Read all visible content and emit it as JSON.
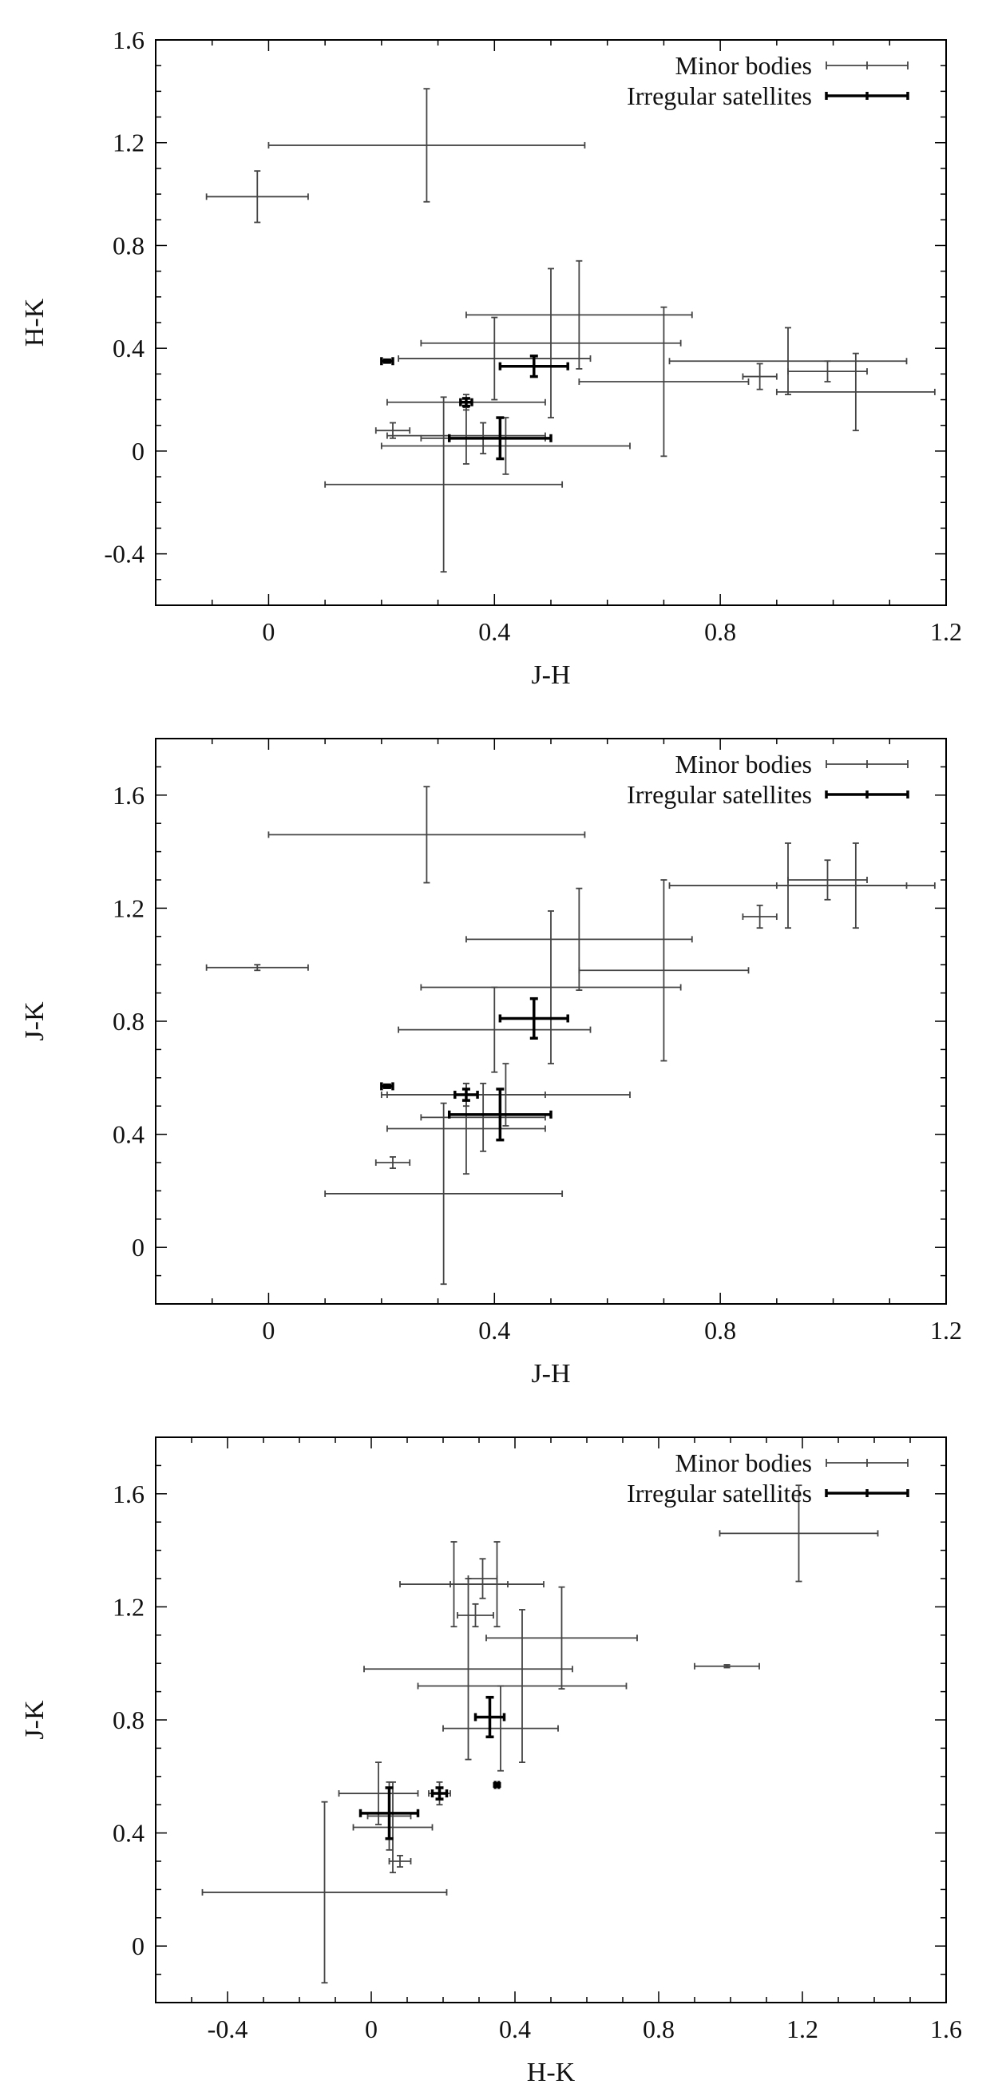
{
  "chart_data": [
    {
      "type": "scatter",
      "title": "",
      "xlabel": "J-H",
      "ylabel": "H-K",
      "xlim": [
        -0.2,
        1.2
      ],
      "ylim": [
        -0.6,
        1.6
      ],
      "xticks": [
        "0",
        "0.4",
        "0.8",
        "1.2"
      ],
      "yticks": [
        "-0.4",
        "0",
        "0.4",
        "0.8",
        "1.2",
        "1.6"
      ],
      "xtick_values": [
        0,
        0.4,
        0.8,
        1.2
      ],
      "ytick_values": [
        -0.4,
        0,
        0.4,
        0.8,
        1.2,
        1.6
      ],
      "grid": false,
      "legend_position": "top-right",
      "series": [
        {
          "name": "Minor bodies",
          "color": "#444444",
          "points": [
            {
              "x": -0.02,
              "y": 0.99,
              "xerr": 0.09,
              "yerr": 0.1
            },
            {
              "x": 0.28,
              "y": 1.19,
              "xerr": 0.28,
              "yerr": 0.22
            },
            {
              "x": 0.55,
              "y": 0.53,
              "xerr": 0.2,
              "yerr": 0.21
            },
            {
              "x": 0.5,
              "y": 0.42,
              "xerr": 0.23,
              "yerr": 0.29
            },
            {
              "x": 0.4,
              "y": 0.36,
              "xerr": 0.17,
              "yerr": 0.16
            },
            {
              "x": 0.7,
              "y": 0.27,
              "xerr": 0.15,
              "yerr": 0.29
            },
            {
              "x": 0.92,
              "y": 0.35,
              "xerr": 0.21,
              "yerr": 0.13
            },
            {
              "x": 0.87,
              "y": 0.29,
              "xerr": 0.03,
              "yerr": 0.05
            },
            {
              "x": 0.99,
              "y": 0.31,
              "xerr": 0.07,
              "yerr": 0.04
            },
            {
              "x": 1.04,
              "y": 0.23,
              "xerr": 0.14,
              "yerr": 0.15
            },
            {
              "x": 0.35,
              "y": 0.19,
              "xerr": 0.14,
              "yerr": 0.03
            },
            {
              "x": 0.22,
              "y": 0.08,
              "xerr": 0.03,
              "yerr": 0.03
            },
            {
              "x": 0.35,
              "y": 0.06,
              "xerr": 0.14,
              "yerr": 0.11
            },
            {
              "x": 0.38,
              "y": 0.05,
              "xerr": 0.11,
              "yerr": 0.06
            },
            {
              "x": 0.42,
              "y": 0.02,
              "xerr": 0.22,
              "yerr": 0.11
            },
            {
              "x": 0.31,
              "y": -0.13,
              "xerr": 0.21,
              "yerr": 0.34
            }
          ]
        },
        {
          "name": "Irregular satellites",
          "color": "#000000",
          "points": [
            {
              "x": 0.21,
              "y": 0.35,
              "xerr": 0.01,
              "yerr": 0.005
            },
            {
              "x": 0.47,
              "y": 0.33,
              "xerr": 0.06,
              "yerr": 0.04
            },
            {
              "x": 0.35,
              "y": 0.19,
              "xerr": 0.01,
              "yerr": 0.015
            },
            {
              "x": 0.41,
              "y": 0.05,
              "xerr": 0.09,
              "yerr": 0.08
            }
          ]
        }
      ]
    },
    {
      "type": "scatter",
      "title": "",
      "xlabel": "J-H",
      "ylabel": "J-K",
      "xlim": [
        -0.2,
        1.2
      ],
      "ylim": [
        -0.2,
        1.8
      ],
      "xticks": [
        "0",
        "0.4",
        "0.8",
        "1.2"
      ],
      "yticks": [
        "0",
        "0.4",
        "0.8",
        "1.2",
        "1.6"
      ],
      "xtick_values": [
        0,
        0.4,
        0.8,
        1.2
      ],
      "ytick_values": [
        0,
        0.4,
        0.8,
        1.2,
        1.6
      ],
      "grid": false,
      "legend_position": "top-right",
      "series": [
        {
          "name": "Minor bodies",
          "color": "#444444",
          "points": [
            {
              "x": -0.02,
              "y": 0.99,
              "xerr": 0.09,
              "yerr": 0.01
            },
            {
              "x": 0.28,
              "y": 1.46,
              "xerr": 0.28,
              "yerr": 0.17
            },
            {
              "x": 0.55,
              "y": 1.09,
              "xerr": 0.2,
              "yerr": 0.18
            },
            {
              "x": 0.5,
              "y": 0.92,
              "xerr": 0.23,
              "yerr": 0.27
            },
            {
              "x": 0.4,
              "y": 0.77,
              "xerr": 0.17,
              "yerr": 0.15
            },
            {
              "x": 0.7,
              "y": 0.98,
              "xerr": 0.15,
              "yerr": 0.32
            },
            {
              "x": 0.92,
              "y": 1.28,
              "xerr": 0.21,
              "yerr": 0.15
            },
            {
              "x": 0.87,
              "y": 1.17,
              "xerr": 0.03,
              "yerr": 0.04
            },
            {
              "x": 0.99,
              "y": 1.3,
              "xerr": 0.07,
              "yerr": 0.07
            },
            {
              "x": 1.04,
              "y": 1.28,
              "xerr": 0.14,
              "yerr": 0.15
            },
            {
              "x": 0.35,
              "y": 0.54,
              "xerr": 0.14,
              "yerr": 0.04
            },
            {
              "x": 0.22,
              "y": 0.3,
              "xerr": 0.03,
              "yerr": 0.02
            },
            {
              "x": 0.35,
              "y": 0.42,
              "xerr": 0.14,
              "yerr": 0.16
            },
            {
              "x": 0.38,
              "y": 0.46,
              "xerr": 0.11,
              "yerr": 0.12
            },
            {
              "x": 0.42,
              "y": 0.54,
              "xerr": 0.22,
              "yerr": 0.11
            },
            {
              "x": 0.31,
              "y": 0.19,
              "xerr": 0.21,
              "yerr": 0.32
            }
          ]
        },
        {
          "name": "Irregular satellites",
          "color": "#000000",
          "points": [
            {
              "x": 0.21,
              "y": 0.57,
              "xerr": 0.01,
              "yerr": 0.005
            },
            {
              "x": 0.47,
              "y": 0.81,
              "xerr": 0.06,
              "yerr": 0.07
            },
            {
              "x": 0.35,
              "y": 0.54,
              "xerr": 0.02,
              "yerr": 0.02
            },
            {
              "x": 0.41,
              "y": 0.47,
              "xerr": 0.09,
              "yerr": 0.09
            }
          ]
        }
      ]
    },
    {
      "type": "scatter",
      "title": "",
      "xlabel": "H-K",
      "ylabel": "J-K",
      "xlim": [
        -0.6,
        1.6
      ],
      "ylim": [
        -0.2,
        1.8
      ],
      "xticks": [
        "-0.4",
        "0",
        "0.4",
        "0.8",
        "1.2",
        "1.6"
      ],
      "yticks": [
        "0",
        "0.4",
        "0.8",
        "1.2",
        "1.6"
      ],
      "xtick_values": [
        -0.4,
        0,
        0.4,
        0.8,
        1.2,
        1.6
      ],
      "ytick_values": [
        0,
        0.4,
        0.8,
        1.2,
        1.6
      ],
      "grid": false,
      "legend_position": "top-right",
      "series": [
        {
          "name": "Minor bodies",
          "color": "#444444",
          "points": [
            {
              "x": 0.99,
              "y": 0.99,
              "xerr": 0.09,
              "yerr": 0.005
            },
            {
              "x": 1.19,
              "y": 1.46,
              "xerr": 0.22,
              "yerr": 0.17
            },
            {
              "x": 0.53,
              "y": 1.09,
              "xerr": 0.21,
              "yerr": 0.18
            },
            {
              "x": 0.42,
              "y": 0.92,
              "xerr": 0.29,
              "yerr": 0.27
            },
            {
              "x": 0.36,
              "y": 0.77,
              "xerr": 0.16,
              "yerr": 0.15
            },
            {
              "x": 0.27,
              "y": 0.98,
              "xerr": 0.29,
              "yerr": 0.32
            },
            {
              "x": 0.35,
              "y": 1.28,
              "xerr": 0.13,
              "yerr": 0.15
            },
            {
              "x": 0.29,
              "y": 1.17,
              "xerr": 0.05,
              "yerr": 0.04
            },
            {
              "x": 0.31,
              "y": 1.3,
              "xerr": 0.04,
              "yerr": 0.07
            },
            {
              "x": 0.23,
              "y": 1.28,
              "xerr": 0.15,
              "yerr": 0.15
            },
            {
              "x": 0.19,
              "y": 0.54,
              "xerr": 0.03,
              "yerr": 0.04
            },
            {
              "x": 0.08,
              "y": 0.3,
              "xerr": 0.03,
              "yerr": 0.02
            },
            {
              "x": 0.06,
              "y": 0.42,
              "xerr": 0.11,
              "yerr": 0.16
            },
            {
              "x": 0.05,
              "y": 0.46,
              "xerr": 0.06,
              "yerr": 0.12
            },
            {
              "x": 0.02,
              "y": 0.54,
              "xerr": 0.11,
              "yerr": 0.11
            },
            {
              "x": -0.13,
              "y": 0.19,
              "xerr": 0.34,
              "yerr": 0.32
            }
          ]
        },
        {
          "name": "Irregular satellites",
          "color": "#000000",
          "points": [
            {
              "x": 0.35,
              "y": 0.57,
              "xerr": 0.005,
              "yerr": 0.005
            },
            {
              "x": 0.33,
              "y": 0.81,
              "xerr": 0.04,
              "yerr": 0.07
            },
            {
              "x": 0.19,
              "y": 0.54,
              "xerr": 0.02,
              "yerr": 0.02
            },
            {
              "x": 0.05,
              "y": 0.47,
              "xerr": 0.08,
              "yerr": 0.09
            }
          ]
        }
      ]
    }
  ]
}
